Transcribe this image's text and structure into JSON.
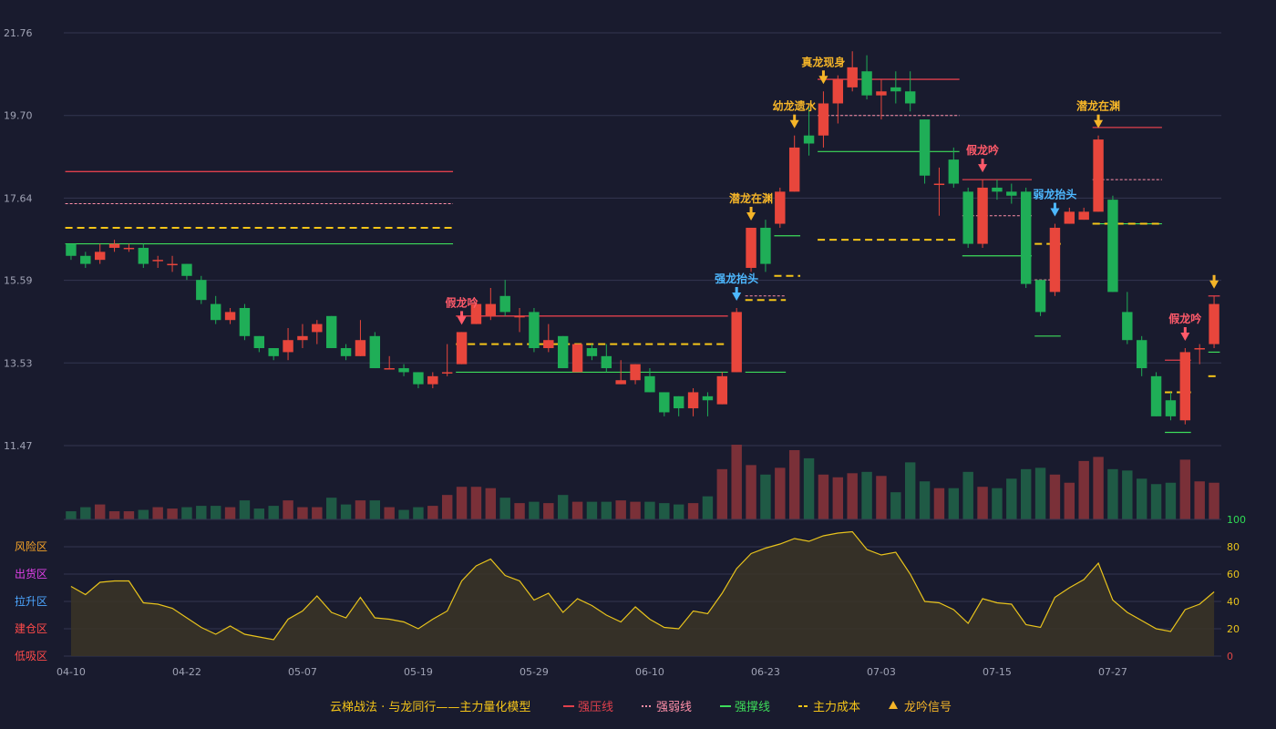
{
  "colors": {
    "background": "#191b2e",
    "grid": "#333650",
    "up": "#e8463c",
    "down": "#1fae57",
    "vol_up": "#7a3038",
    "vol_down": "#1f5a45",
    "pressure": "#e0404c",
    "weak": "#ff8fa8",
    "support": "#3ddc5a",
    "cost": "#f5c518",
    "signal": "#f5b528",
    "signal_blue": "#4db8ff",
    "signal_red": "#ff5a6a",
    "indicator": "#e8c31c",
    "axis_text": "#a0a3b5",
    "right_zero": "#e04646",
    "right_green": "#2fdc55"
  },
  "chart_data": {
    "type": "candlestick",
    "price_axis": {
      "ticks": [
        "21.76",
        "19.70",
        "17.64",
        "15.59",
        "13.53",
        "11.47"
      ],
      "min": 11.47,
      "max": 21.76
    },
    "x_labels": [
      {
        "index": 0,
        "label": "04-10"
      },
      {
        "index": 8,
        "label": "04-22"
      },
      {
        "index": 16,
        "label": "05-07"
      },
      {
        "index": 24,
        "label": "05-19"
      },
      {
        "index": 32,
        "label": "05-29"
      },
      {
        "index": 40,
        "label": "06-10"
      },
      {
        "index": 48,
        "label": "06-23"
      },
      {
        "index": 56,
        "label": "07-03"
      },
      {
        "index": 64,
        "label": "07-15"
      },
      {
        "index": 72,
        "label": "07-27"
      }
    ],
    "candles": [
      [
        16.5,
        16.2,
        16.5,
        16.1
      ],
      [
        16.2,
        16.0,
        16.3,
        15.9
      ],
      [
        16.1,
        16.3,
        16.5,
        16.0
      ],
      [
        16.4,
        16.5,
        16.6,
        16.3
      ],
      [
        16.4,
        16.4,
        16.5,
        16.3
      ],
      [
        16.4,
        16.0,
        16.5,
        15.9
      ],
      [
        16.1,
        16.1,
        16.2,
        15.9
      ],
      [
        16.0,
        16.0,
        16.2,
        15.8
      ],
      [
        16.0,
        15.7,
        16.0,
        15.6
      ],
      [
        15.6,
        15.1,
        15.7,
        15.0
      ],
      [
        15.0,
        14.6,
        15.2,
        14.5
      ],
      [
        14.6,
        14.8,
        14.9,
        14.5
      ],
      [
        14.9,
        14.2,
        15.0,
        14.1
      ],
      [
        14.2,
        13.9,
        14.2,
        13.8
      ],
      [
        13.9,
        13.7,
        13.9,
        13.6
      ],
      [
        13.8,
        14.1,
        14.4,
        13.6
      ],
      [
        14.1,
        14.2,
        14.5,
        13.9
      ],
      [
        14.3,
        14.5,
        14.6,
        14.0
      ],
      [
        14.7,
        13.9,
        14.7,
        13.9
      ],
      [
        13.9,
        13.7,
        14.0,
        13.6
      ],
      [
        13.7,
        14.1,
        14.6,
        13.7
      ],
      [
        14.2,
        13.4,
        14.3,
        13.4
      ],
      [
        13.4,
        13.4,
        13.7,
        13.4
      ],
      [
        13.4,
        13.3,
        13.5,
        13.2
      ],
      [
        13.3,
        13.0,
        13.3,
        12.9
      ],
      [
        13.0,
        13.2,
        13.3,
        12.9
      ],
      [
        13.3,
        13.3,
        14.0,
        13.2
      ],
      [
        13.5,
        14.3,
        14.3,
        13.5
      ],
      [
        14.5,
        15.0,
        15.1,
        14.5
      ],
      [
        14.7,
        15.0,
        15.4,
        14.6
      ],
      [
        15.2,
        14.8,
        15.6,
        14.7
      ],
      [
        14.7,
        14.7,
        14.9,
        14.3
      ],
      [
        14.8,
        13.9,
        14.9,
        13.8
      ],
      [
        13.9,
        14.1,
        14.5,
        13.8
      ],
      [
        14.2,
        13.4,
        14.2,
        13.4
      ],
      [
        13.3,
        14.0,
        14.0,
        13.3
      ],
      [
        13.9,
        13.7,
        14.0,
        13.6
      ],
      [
        13.7,
        13.4,
        14.0,
        13.3
      ],
      [
        13.0,
        13.1,
        13.6,
        13.0
      ],
      [
        13.1,
        13.5,
        13.5,
        13.0
      ],
      [
        13.2,
        12.8,
        13.4,
        12.8
      ],
      [
        12.8,
        12.3,
        12.8,
        12.2
      ],
      [
        12.7,
        12.4,
        12.7,
        12.2
      ],
      [
        12.4,
        12.8,
        12.9,
        12.2
      ],
      [
        12.7,
        12.6,
        12.8,
        12.2
      ],
      [
        12.5,
        13.2,
        13.3,
        12.5
      ],
      [
        13.3,
        14.8,
        14.9,
        13.3
      ],
      [
        15.9,
        16.9,
        16.9,
        15.8
      ],
      [
        16.9,
        16.0,
        17.1,
        15.8
      ],
      [
        17.0,
        17.8,
        17.9,
        16.9
      ],
      [
        17.8,
        18.9,
        19.2,
        17.8
      ],
      [
        19.2,
        19.0,
        19.9,
        18.7
      ],
      [
        19.2,
        20.0,
        20.3,
        18.9
      ],
      [
        20.0,
        20.6,
        20.7,
        19.5
      ],
      [
        20.4,
        20.9,
        21.3,
        20.3
      ],
      [
        20.8,
        20.2,
        21.2,
        20.1
      ],
      [
        20.2,
        20.3,
        20.6,
        19.6
      ],
      [
        20.4,
        20.3,
        20.8,
        20.0
      ],
      [
        20.3,
        20.0,
        20.8,
        19.8
      ],
      [
        19.6,
        18.2,
        19.6,
        18.0
      ],
      [
        18.0,
        18.0,
        18.4,
        17.2
      ],
      [
        18.6,
        18.0,
        18.9,
        17.9
      ],
      [
        17.8,
        16.5,
        17.9,
        16.4
      ],
      [
        16.5,
        17.9,
        18.1,
        16.4
      ],
      [
        17.9,
        17.8,
        18.1,
        17.6
      ],
      [
        17.8,
        17.7,
        18.0,
        17.5
      ],
      [
        17.8,
        15.5,
        17.9,
        15.4
      ],
      [
        15.6,
        14.8,
        15.6,
        14.7
      ],
      [
        15.3,
        16.9,
        17.0,
        15.2
      ],
      [
        17.0,
        17.3,
        17.4,
        17.0
      ],
      [
        17.1,
        17.3,
        17.4,
        17.1
      ],
      [
        17.3,
        19.1,
        19.2,
        17.3
      ],
      [
        17.6,
        15.3,
        17.7,
        15.3
      ],
      [
        14.8,
        14.1,
        15.3,
        14.0
      ],
      [
        14.1,
        13.4,
        14.2,
        13.2
      ],
      [
        13.2,
        12.2,
        13.3,
        12.2
      ],
      [
        12.6,
        12.2,
        12.8,
        12.1
      ],
      [
        12.1,
        13.8,
        13.9,
        12.0
      ],
      [
        13.9,
        13.9,
        14.0,
        13.5
      ],
      [
        14.0,
        15.0,
        15.2,
        13.9
      ]
    ],
    "volume": [
      6,
      9,
      11,
      6,
      6,
      7,
      9,
      8,
      9,
      10,
      10,
      9,
      14,
      8,
      10,
      14,
      9,
      9,
      16,
      11,
      14,
      14,
      9,
      7,
      9,
      10,
      18,
      24,
      24,
      23,
      16,
      12,
      13,
      12,
      18,
      13,
      13,
      13,
      14,
      13,
      13,
      12,
      11,
      12,
      17,
      37,
      55,
      40,
      33,
      38,
      51,
      45,
      33,
      31,
      34,
      35,
      32,
      20,
      42,
      28,
      23,
      23,
      35,
      24,
      23,
      30,
      37,
      38,
      33,
      27,
      43,
      46,
      37,
      36,
      30,
      26,
      27,
      44,
      28,
      27
    ],
    "levels": [
      {
        "type": "pressure",
        "value": 18.3,
        "from": 0,
        "to": 26
      },
      {
        "type": "weak",
        "value": 17.5,
        "from": 0,
        "to": 26
      },
      {
        "type": "cost",
        "value": 16.9,
        "from": 0,
        "to": 26
      },
      {
        "type": "support",
        "value": 16.5,
        "from": 0,
        "to": 26
      },
      {
        "type": "pressure",
        "value": 14.7,
        "from": 27,
        "to": 45
      },
      {
        "type": "cost",
        "value": 14.0,
        "from": 27,
        "to": 45
      },
      {
        "type": "support",
        "value": 13.3,
        "from": 27,
        "to": 45
      },
      {
        "type": "weak",
        "value": 15.2,
        "from": 47,
        "to": 49
      },
      {
        "type": "cost",
        "value": 15.1,
        "from": 47,
        "to": 49
      },
      {
        "type": "support",
        "value": 13.3,
        "from": 47,
        "to": 49
      },
      {
        "type": "support",
        "value": 16.7,
        "from": 49,
        "to": 50
      },
      {
        "type": "cost",
        "value": 15.7,
        "from": 49,
        "to": 50
      },
      {
        "type": "pressure",
        "value": 20.6,
        "from": 52,
        "to": 61
      },
      {
        "type": "weak",
        "value": 19.7,
        "from": 52,
        "to": 61
      },
      {
        "type": "support",
        "value": 18.8,
        "from": 52,
        "to": 61
      },
      {
        "type": "cost",
        "value": 16.6,
        "from": 52,
        "to": 61
      },
      {
        "type": "pressure",
        "value": 18.1,
        "from": 62,
        "to": 66
      },
      {
        "type": "weak",
        "value": 17.2,
        "from": 62,
        "to": 66
      },
      {
        "type": "support",
        "value": 16.2,
        "from": 62,
        "to": 66
      },
      {
        "type": "weak",
        "value": 15.6,
        "from": 67,
        "to": 68
      },
      {
        "type": "cost",
        "value": 16.5,
        "from": 67,
        "to": 68
      },
      {
        "type": "support",
        "value": 14.2,
        "from": 67,
        "to": 68
      },
      {
        "type": "pressure",
        "value": 19.4,
        "from": 71,
        "to": 75
      },
      {
        "type": "weak",
        "value": 18.1,
        "from": 71,
        "to": 75
      },
      {
        "type": "support",
        "value": 17.0,
        "from": 71,
        "to": 75
      },
      {
        "type": "cost",
        "value": 17.0,
        "from": 71,
        "to": 75
      },
      {
        "type": "pressure",
        "value": 13.6,
        "from": 76,
        "to": 77
      },
      {
        "type": "cost",
        "value": 12.8,
        "from": 76,
        "to": 77
      },
      {
        "type": "support",
        "value": 11.8,
        "from": 76,
        "to": 77
      },
      {
        "type": "pressure",
        "value": 15.2,
        "from": 79,
        "to": 79
      },
      {
        "type": "support",
        "value": 13.8,
        "from": 79,
        "to": 79
      },
      {
        "type": "cost",
        "value": 13.2,
        "from": 79,
        "to": 79
      }
    ],
    "signals": [
      {
        "index": 27,
        "label": "假龙吟",
        "color": "signal_red"
      },
      {
        "index": 46,
        "label": "强龙抬头",
        "color": "signal_blue"
      },
      {
        "index": 47,
        "label": "潜龙在渊",
        "color": "signal"
      },
      {
        "index": 50,
        "label": "幼龙遗水",
        "color": "signal"
      },
      {
        "index": 52,
        "label": "真龙现身",
        "color": "signal"
      },
      {
        "index": 63,
        "label": "假龙吟",
        "color": "signal_red"
      },
      {
        "index": 68,
        "label": "弱龙抬头",
        "color": "signal_blue"
      },
      {
        "index": 71,
        "label": "潜龙在渊",
        "color": "signal"
      },
      {
        "index": 77,
        "label": "假龙吟",
        "color": "signal_red"
      },
      {
        "index": 79,
        "label": "",
        "color": "signal"
      }
    ],
    "indicator": {
      "values": [
        51,
        45,
        54,
        55,
        55,
        39,
        38,
        35,
        28,
        21,
        16,
        22,
        16,
        14,
        12,
        27,
        33,
        44,
        32,
        28,
        43,
        28,
        27,
        25,
        20,
        27,
        33,
        55,
        66,
        71,
        59,
        55,
        41,
        46,
        32,
        42,
        37,
        30,
        25,
        36,
        27,
        21,
        20,
        33,
        31,
        46,
        64,
        75,
        79,
        82,
        86,
        84,
        88,
        90,
        91,
        78,
        74,
        76,
        60,
        40,
        39,
        34,
        24,
        42,
        39,
        38,
        23,
        21,
        43,
        50,
        56,
        68,
        41,
        32,
        26,
        20,
        18,
        34,
        38,
        47
      ],
      "zone_labels": [
        {
          "label": "风险区",
          "value": 80,
          "color": "#f5a328"
        },
        {
          "label": "出货区",
          "value": 60,
          "color": "#e040e8"
        },
        {
          "label": "拉升区",
          "value": 40,
          "color": "#4da6ff"
        },
        {
          "label": "建仓区",
          "value": 20,
          "color": "#ff4a4a"
        },
        {
          "label": "低吸区",
          "value": 0,
          "color": "#ff4a4a"
        }
      ],
      "right_ticks": [
        "100",
        "80",
        "60",
        "40",
        "20",
        "0"
      ]
    },
    "legend": {
      "title": "云梯战法 · 与龙同行——主力量化模型",
      "items": [
        {
          "label": "强压线",
          "color": "pressure",
          "style": "solid"
        },
        {
          "label": "强弱线",
          "color": "weak",
          "style": "dotted"
        },
        {
          "label": "强撑线",
          "color": "support",
          "style": "solid"
        },
        {
          "label": "主力成本",
          "color": "cost",
          "style": "dashed"
        },
        {
          "label": "龙吟信号",
          "color": "signal",
          "style": "triangle"
        }
      ]
    }
  }
}
